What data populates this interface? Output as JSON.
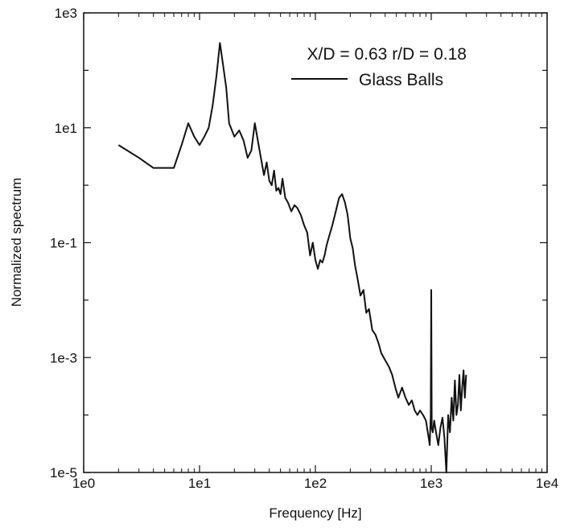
{
  "chart_data": {
    "type": "line",
    "title": "",
    "xlabel": "Frequency [Hz]",
    "ylabel": "Normalized spectrum",
    "xscale": "log",
    "yscale": "log",
    "xlim": [
      1,
      10000
    ],
    "ylim": [
      1e-05,
      1000
    ],
    "x_tick_labels": [
      "1e0",
      "1e1",
      "1e2",
      "1e3",
      "1e4"
    ],
    "y_tick_labels": [
      "1e-5",
      "1e-3",
      "1e-1",
      "1e1",
      "1e3"
    ],
    "annotation": "X/D = 0.63 r/D = 0.18",
    "legend": {
      "position": "top-right",
      "entries": [
        "Glass Balls"
      ]
    },
    "grid": false,
    "line_color": "#111111",
    "series": [
      {
        "name": "Glass Balls",
        "x": [
          2,
          3,
          4,
          5,
          6,
          7,
          8,
          9,
          10,
          11,
          12,
          13,
          14,
          15,
          16,
          17,
          18,
          20,
          22,
          24,
          26,
          28,
          30,
          33,
          36,
          38,
          40,
          42,
          44,
          46,
          48,
          50,
          52,
          55,
          58,
          62,
          66,
          70,
          75,
          80,
          85,
          90,
          95,
          100,
          105,
          110,
          115,
          120,
          125,
          130,
          140,
          150,
          160,
          170,
          180,
          190,
          200,
          210,
          220,
          230,
          245,
          260,
          275,
          290,
          310,
          330,
          350,
          370,
          400,
          430,
          460,
          490,
          520,
          560,
          600,
          640,
          680,
          720,
          760,
          800,
          850,
          900,
          950,
          970,
          990,
          1000,
          1010,
          1030,
          1060,
          1100,
          1150,
          1200,
          1250,
          1300,
          1350,
          1400,
          1450,
          1500,
          1550,
          1600,
          1650,
          1700,
          1750,
          1800,
          1850,
          1900,
          1950,
          2000
        ],
        "y": [
          5.0,
          3.0,
          2.0,
          2.0,
          2.0,
          5.0,
          12.0,
          7.0,
          5.0,
          7.0,
          10.0,
          25.0,
          80.0,
          300.0,
          120.0,
          50.0,
          12.0,
          7.0,
          9.0,
          6.0,
          3.0,
          4.0,
          12.0,
          4.0,
          1.5,
          2.5,
          1.2,
          1.0,
          1.8,
          0.8,
          0.9,
          0.7,
          1.3,
          0.6,
          0.5,
          0.35,
          0.45,
          0.4,
          0.3,
          0.2,
          0.15,
          0.06,
          0.1,
          0.05,
          0.035,
          0.05,
          0.045,
          0.06,
          0.09,
          0.12,
          0.2,
          0.35,
          0.6,
          0.7,
          0.5,
          0.3,
          0.12,
          0.08,
          0.04,
          0.025,
          0.012,
          0.015,
          0.006,
          0.007,
          0.003,
          0.0025,
          0.0018,
          0.0012,
          0.0009,
          0.0007,
          0.0005,
          0.0003,
          0.0002,
          0.0003,
          0.0002,
          0.00015,
          0.00018,
          0.00012,
          0.0001,
          0.00012,
          0.0001,
          8e-05,
          4e-05,
          3e-05,
          0.0001,
          0.015,
          6e-05,
          5e-05,
          8e-05,
          5e-05,
          3e-05,
          6e-05,
          9e-05,
          4e-05,
          1e-05,
          0.0001,
          5e-05,
          0.0002,
          8e-05,
          0.0004,
          0.0001,
          0.00015,
          0.0005,
          0.00012,
          0.0003,
          0.0006,
          0.0002,
          0.0005
        ]
      }
    ]
  }
}
